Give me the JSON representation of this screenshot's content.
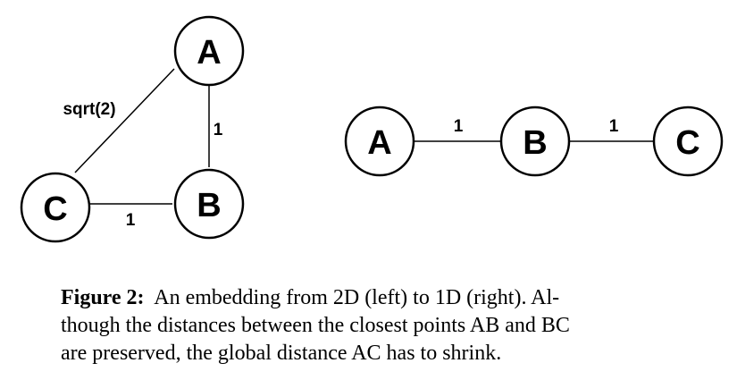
{
  "left_graph": {
    "nodes": {
      "A": "A",
      "B": "B",
      "C": "C"
    },
    "edges": {
      "AC": "sqrt(2)",
      "AB": "1",
      "CB": "1"
    }
  },
  "right_graph": {
    "nodes": {
      "A": "A",
      "B": "B",
      "C": "C"
    },
    "edges": {
      "AB": "1",
      "BC": "1"
    }
  },
  "caption": {
    "lead": "Figure 2:",
    "line1": "An embedding from 2D (left) to 1D (right).  Al-",
    "line2": "though the distances between the closest points AB and BC",
    "line3": "are preserved, the global distance AC has to shrink."
  }
}
